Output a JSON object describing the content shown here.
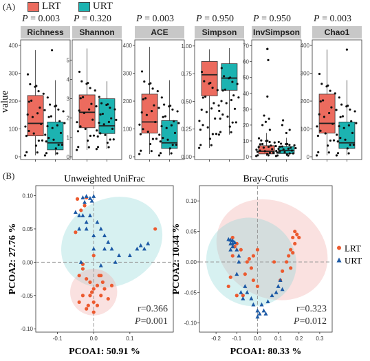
{
  "panel_labels": {
    "a": "(A)",
    "b": "(B)"
  },
  "legend_a": [
    {
      "name": "LRT",
      "color": "#ec6b5e"
    },
    {
      "name": "URT",
      "color": "#1cb3b1"
    }
  ],
  "chart_data": [
    {
      "type": "box",
      "panel": "A",
      "ylabel": "value",
      "groups": [
        "LRT",
        "URT"
      ],
      "facets": [
        {
          "title": "Richness",
          "p": "0.003",
          "ylim": [
            0,
            410
          ],
          "yticks": [
            0,
            100,
            200,
            300,
            400
          ],
          "boxes": {
            "LRT": {
              "min": 5,
              "q1": 75,
              "median": 120,
              "q3": 220,
              "max": 383
            },
            "URT": {
              "min": 5,
              "q1": 25,
              "median": 50,
              "q3": 125,
              "max": 275
            }
          },
          "outliers": {
            "LRT": [],
            "URT": [
              383
            ]
          }
        },
        {
          "title": "Shannon",
          "p": "0.320",
          "ylim": [
            0,
            5.9
          ],
          "yticks": [
            0,
            1,
            2,
            3,
            4,
            5
          ],
          "boxes": {
            "LRT": {
              "min": 0.35,
              "q1": 1.5,
              "median": 2.3,
              "q3": 3.2,
              "max": 5.6
            },
            "URT": {
              "min": 0.4,
              "q1": 1.2,
              "median": 1.6,
              "q3": 3.0,
              "max": 3.9
            }
          },
          "outliers": {
            "LRT": [],
            "URT": []
          }
        },
        {
          "title": "ACE",
          "p": "0.003",
          "ylim": [
            0,
            410
          ],
          "yticks": [
            0,
            100,
            200,
            300,
            400
          ],
          "boxes": {
            "LRT": {
              "min": 10,
              "q1": 85,
              "median": 125,
              "q3": 225,
              "max": 395
            },
            "URT": {
              "min": 5,
              "q1": 30,
              "median": 50,
              "q3": 130,
              "max": 275
            }
          },
          "outliers": {
            "LRT": [],
            "URT": []
          }
        },
        {
          "title": "Simpson",
          "p": "0.950",
          "ylim": [
            0,
            1.03
          ],
          "yticks": [
            0,
            0.25,
            0.5,
            0.75,
            1.0
          ],
          "boxes": {
            "LRT": {
              "min": 0.08,
              "q1": 0.55,
              "median": 0.74,
              "q3": 0.86,
              "max": 0.97
            },
            "URT": {
              "min": 0.2,
              "q1": 0.6,
              "median": 0.71,
              "q3": 0.84,
              "max": 0.98
            }
          },
          "outliers": {
            "LRT": [],
            "URT": []
          }
        },
        {
          "title": "InvSimpson",
          "p": "0.950",
          "ylim": [
            0,
            72
          ],
          "yticks": [
            0,
            10,
            20,
            30,
            40,
            50,
            60,
            70
          ],
          "boxes": {
            "LRT": {
              "min": 0.5,
              "q1": 1.8,
              "median": 3.5,
              "q3": 7,
              "max": 15
            },
            "URT": {
              "min": 0.5,
              "q1": 2,
              "median": 4,
              "q3": 6.5,
              "max": 12
            }
          },
          "outliers": {
            "LRT": [
              17,
              20,
              22,
              24,
              26,
              38,
              61,
              68,
              68
            ],
            "URT": [
              15,
              17,
              20,
              23
            ]
          }
        },
        {
          "title": "Chao1",
          "p": "0.003",
          "ylim": [
            0,
            410
          ],
          "yticks": [
            0,
            100,
            200,
            300,
            400
          ],
          "boxes": {
            "LRT": {
              "min": 5,
              "q1": 85,
              "median": 120,
              "q3": 225,
              "max": 385
            },
            "URT": {
              "min": 5,
              "q1": 30,
              "median": 50,
              "q3": 125,
              "max": 275
            }
          },
          "outliers": {
            "LRT": [],
            "URT": [
              385
            ]
          }
        }
      ]
    },
    {
      "type": "scatter",
      "panel": "B",
      "title": "Unweighted UniFrac",
      "xlabel": "PCOA1: 50.91 %",
      "ylabel": "PCOA2:  27.76 %",
      "xlim": [
        -0.16,
        0.22
      ],
      "ylim": [
        -0.105,
        0.115
      ],
      "xticks": [
        -0.1,
        0.0,
        0.1
      ],
      "yticks": [
        -0.1,
        -0.05,
        0.0,
        0.05,
        0.1
      ],
      "annotation_r": "r=0.366",
      "annotation_p": "=0.001",
      "ellipses": [
        {
          "series": "URT",
          "cx": 0.05,
          "cy": 0.03,
          "rx": 0.145,
          "ry": 0.065,
          "angle": -28
        },
        {
          "series": "LRT",
          "cx": 0.0,
          "cy": -0.045,
          "rx": 0.065,
          "ry": 0.035,
          "angle": -12
        }
      ],
      "series": [
        {
          "name": "LRT",
          "color": "#ec5a2f",
          "marker": "circle",
          "points": [
            [
              -0.045,
              0.095
            ],
            [
              -0.035,
              0.078
            ],
            [
              -0.025,
              0.085
            ],
            [
              -0.02,
              0.097
            ],
            [
              -0.05,
              0.045
            ],
            [
              -0.03,
              -0.003
            ],
            [
              0.0,
              0.01
            ],
            [
              0.17,
              0.05
            ],
            [
              -0.04,
              -0.02
            ],
            [
              -0.03,
              -0.01
            ],
            [
              -0.02,
              -0.025
            ],
            [
              -0.01,
              -0.03
            ],
            [
              0.0,
              -0.04
            ],
            [
              0.01,
              -0.035
            ],
            [
              0.02,
              -0.02
            ],
            [
              0.0,
              -0.06
            ],
            [
              -0.01,
              -0.05
            ],
            [
              0.02,
              -0.05
            ],
            [
              0.03,
              -0.04
            ],
            [
              0.04,
              -0.055
            ],
            [
              -0.02,
              -0.07
            ],
            [
              -0.015,
              -0.065
            ],
            [
              0.01,
              -0.065
            ],
            [
              0.0,
              -0.075
            ],
            [
              -0.03,
              -0.05
            ],
            [
              0.025,
              -0.03
            ],
            [
              0.05,
              -0.035
            ],
            [
              -0.04,
              -0.06
            ],
            [
              -0.005,
              -0.045
            ],
            [
              0.015,
              -0.02
            ]
          ]
        },
        {
          "name": "URT",
          "color": "#1d5aa5",
          "marker": "triangle",
          "points": [
            [
              -0.03,
              0.097
            ],
            [
              -0.02,
              0.099
            ],
            [
              -0.01,
              0.096
            ],
            [
              0.0,
              0.099
            ],
            [
              -0.025,
              0.09
            ],
            [
              -0.005,
              0.092
            ],
            [
              -0.05,
              0.075
            ],
            [
              -0.03,
              0.07
            ],
            [
              -0.02,
              0.06
            ],
            [
              -0.04,
              0.07
            ],
            [
              -0.01,
              0.07
            ],
            [
              0.01,
              0.06
            ],
            [
              -0.04,
              0.05
            ],
            [
              -0.02,
              0.05
            ],
            [
              0.0,
              0.04
            ],
            [
              0.02,
              0.05
            ],
            [
              0.03,
              0.04
            ],
            [
              0.04,
              0.03
            ],
            [
              0.05,
              0.02
            ],
            [
              0.07,
              0.01
            ],
            [
              0.03,
              0.02
            ],
            [
              0.0,
              0.02
            ],
            [
              0.06,
              0.0
            ],
            [
              0.02,
              -0.005
            ],
            [
              0.12,
              0.02
            ],
            [
              0.13,
              0.025
            ],
            [
              0.14,
              0.02
            ],
            [
              0.15,
              0.028
            ],
            [
              0.1,
              0.01
            ],
            [
              -0.035,
              0.0
            ]
          ]
        }
      ]
    },
    {
      "type": "scatter",
      "panel": "B",
      "title": "Bray-Crutis",
      "xlabel": "PCOA1: 80.33 %",
      "ylabel": "PCOA2:  10.44 %",
      "xlim": [
        -0.28,
        0.36
      ],
      "ylim": [
        -0.115,
        0.125
      ],
      "xticks": [
        -0.2,
        -0.1,
        0.0,
        0.1,
        0.2,
        0.3
      ],
      "yticks": [
        -0.1,
        -0.05,
        0.0,
        0.05,
        0.1
      ],
      "annotation_r": "r=0.323",
      "annotation_p": "=0.012",
      "legend": [
        {
          "name": "LRT"
        },
        {
          "name": "URT"
        }
      ],
      "ellipses": [
        {
          "series": "LRT",
          "cx": 0.07,
          "cy": 0.02,
          "rx": 0.23,
          "ry": 0.095,
          "angle": -60
        },
        {
          "series": "URT",
          "cx": -0.03,
          "cy": 0.0,
          "rx": 0.21,
          "ry": 0.075,
          "angle": -55
        }
      ],
      "series": [
        {
          "name": "LRT",
          "color": "#ec5a2f",
          "marker": "circle",
          "points": [
            [
              0.18,
              0.05
            ],
            [
              0.19,
              0.045
            ],
            [
              0.17,
              0.04
            ],
            [
              0.18,
              0.03
            ],
            [
              0.2,
              0.04
            ],
            [
              0.16,
              0.02
            ],
            [
              0.15,
              0.01
            ],
            [
              0.17,
              0.015
            ],
            [
              0.14,
              0.0
            ],
            [
              0.16,
              -0.01
            ],
            [
              -0.12,
              0.04
            ],
            [
              -0.1,
              0.03
            ],
            [
              -0.08,
              0.02
            ],
            [
              -0.05,
              0.0
            ],
            [
              -0.03,
              -0.01
            ],
            [
              -0.06,
              -0.02
            ],
            [
              -0.02,
              -0.03
            ],
            [
              0.0,
              -0.04
            ],
            [
              -0.04,
              0.005
            ],
            [
              -0.11,
              0.025
            ],
            [
              -0.12,
              0.01
            ],
            [
              -0.13,
              -0.025
            ],
            [
              -0.14,
              -0.04
            ],
            [
              -0.1,
              -0.055
            ],
            [
              -0.07,
              -0.055
            ],
            [
              -0.02,
              0.01
            ],
            [
              0.0,
              0.02
            ],
            [
              0.12,
              -0.015
            ],
            [
              0.11,
              -0.03
            ],
            [
              0.08,
              0.0
            ]
          ]
        },
        {
          "name": "URT",
          "color": "#1d5aa5",
          "marker": "triangle",
          "points": [
            [
              -0.14,
              0.037
            ],
            [
              -0.13,
              0.036
            ],
            [
              -0.12,
              0.035
            ],
            [
              -0.13,
              0.03
            ],
            [
              -0.11,
              0.032
            ],
            [
              -0.12,
              0.025
            ],
            [
              -0.13,
              0.02
            ],
            [
              -0.1,
              0.02
            ],
            [
              -0.09,
              0.0
            ],
            [
              -0.1,
              -0.02
            ],
            [
              -0.08,
              -0.05
            ],
            [
              -0.07,
              -0.06
            ],
            [
              -0.05,
              -0.05
            ],
            [
              -0.03,
              -0.06
            ],
            [
              -0.02,
              -0.07
            ],
            [
              0.0,
              -0.08
            ],
            [
              0.0,
              -0.09
            ],
            [
              0.01,
              -0.085
            ],
            [
              0.03,
              -0.08
            ],
            [
              0.05,
              -0.065
            ],
            [
              0.07,
              -0.055
            ],
            [
              0.09,
              -0.05
            ],
            [
              0.1,
              -0.04
            ],
            [
              0.11,
              -0.03
            ],
            [
              0.12,
              -0.045
            ],
            [
              -0.09,
              0.01
            ],
            [
              -0.06,
              -0.04
            ],
            [
              0.02,
              -0.07
            ],
            [
              -0.12,
              0.03
            ],
            [
              0.04,
              -0.085
            ]
          ]
        }
      ]
    }
  ]
}
